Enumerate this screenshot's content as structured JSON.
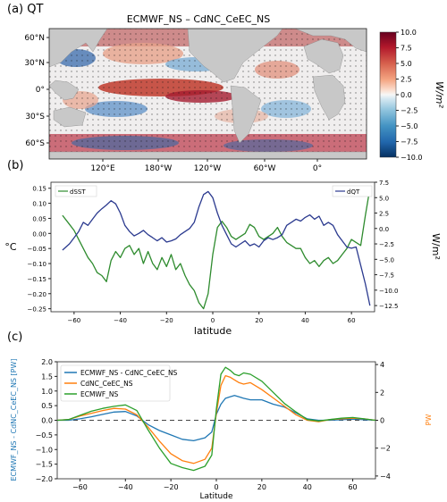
{
  "panels": {
    "a": {
      "label": "(a) QT"
    },
    "b": {
      "label": "(b)"
    },
    "c": {
      "label": "(c)"
    }
  },
  "chart_data": [
    {
      "type": "heatmap",
      "panel": "a",
      "title": "ECMWF_NS – CdNC_CeEC_NS",
      "x_ticks": [
        "120°E",
        "180°W",
        "120°W",
        "60°W",
        "0°"
      ],
      "y_ticks": [
        "60°N",
        "30°N",
        "0°",
        "30°S",
        "60°S"
      ],
      "colorbar": {
        "ticks": [
          "10.0",
          "7.5",
          "5.0",
          "2.5",
          "0.0",
          "−2.5",
          "−5.0",
          "−7.5",
          "−10.0"
        ],
        "label": "W/m²",
        "range": [
          -10,
          10
        ],
        "colormap": "RdBu_r"
      },
      "land_color": "#c8c8c8",
      "stippling": true
    },
    {
      "type": "line",
      "panel": "b",
      "xlabel": "latitude",
      "ylabel_left": "°C",
      "ylabel_right": "W/m²",
      "xlim": [
        -70,
        70
      ],
      "ylim_left": [
        -0.26,
        0.17
      ],
      "ylim_right": [
        -13.5,
        7.5
      ],
      "x_ticks": [
        "−60",
        "−40",
        "−20",
        "0",
        "20",
        "40",
        "60"
      ],
      "y_ticks_left": [
        "0.15",
        "0.10",
        "0.05",
        "0.00",
        "−0.05",
        "−0.10",
        "−0.15",
        "−0.20",
        "−0.25"
      ],
      "y_ticks_right": [
        "7.5",
        "5.0",
        "2.5",
        "0.0",
        "−2.5",
        "−5.0",
        "−7.5",
        "−10.0",
        "−12.5"
      ],
      "legend": {
        "left": "dSST",
        "right": "dQT"
      },
      "series": [
        {
          "name": "dSST",
          "axis": "left",
          "color": "#2e8b2e",
          "x": [
            -65,
            -62,
            -60,
            -58,
            -56,
            -54,
            -52,
            -50,
            -48,
            -46,
            -44,
            -42,
            -40,
            -38,
            -36,
            -34,
            -32,
            -30,
            -28,
            -26,
            -24,
            -22,
            -20,
            -18,
            -16,
            -14,
            -12,
            -10,
            -8,
            -6,
            -4,
            -2,
            0,
            2,
            4,
            6,
            8,
            10,
            12,
            14,
            16,
            18,
            20,
            22,
            24,
            26,
            28,
            30,
            32,
            34,
            36,
            38,
            40,
            42,
            44,
            46,
            48,
            50,
            52,
            54,
            56,
            58,
            60,
            62,
            64,
            66,
            68
          ],
          "y": [
            0.06,
            0.03,
            0.01,
            -0.02,
            -0.05,
            -0.08,
            -0.1,
            -0.13,
            -0.14,
            -0.16,
            -0.09,
            -0.06,
            -0.08,
            -0.05,
            -0.04,
            -0.07,
            -0.05,
            -0.1,
            -0.06,
            -0.1,
            -0.12,
            -0.08,
            -0.11,
            -0.07,
            -0.12,
            -0.1,
            -0.14,
            -0.17,
            -0.19,
            -0.23,
            -0.25,
            -0.2,
            -0.07,
            0.02,
            0.04,
            0.02,
            -0.01,
            -0.02,
            -0.01,
            0.0,
            0.03,
            0.02,
            -0.01,
            -0.02,
            -0.01,
            0.0,
            0.02,
            -0.01,
            -0.03,
            -0.04,
            -0.05,
            -0.05,
            -0.08,
            -0.1,
            -0.09,
            -0.11,
            -0.09,
            -0.08,
            -0.1,
            -0.09,
            -0.07,
            -0.05,
            -0.02,
            -0.03,
            -0.04,
            0.06,
            0.15
          ]
        },
        {
          "name": "dQT",
          "axis": "right",
          "color": "#2b3a8f",
          "x": [
            -65,
            -62,
            -60,
            -58,
            -56,
            -54,
            -52,
            -50,
            -48,
            -46,
            -44,
            -42,
            -40,
            -38,
            -36,
            -34,
            -32,
            -30,
            -28,
            -26,
            -24,
            -22,
            -20,
            -18,
            -16,
            -14,
            -12,
            -10,
            -8,
            -6,
            -4,
            -2,
            0,
            2,
            4,
            6,
            8,
            10,
            12,
            14,
            16,
            18,
            20,
            22,
            24,
            26,
            28,
            30,
            32,
            34,
            36,
            38,
            40,
            42,
            44,
            46,
            48,
            50,
            52,
            54,
            56,
            58,
            60,
            62,
            64,
            66,
            68
          ],
          "y": [
            -3.5,
            -2.5,
            -1.5,
            -0.5,
            1.0,
            0.5,
            1.5,
            2.5,
            3.2,
            3.8,
            4.5,
            4.0,
            2.5,
            0.5,
            -0.5,
            -1.2,
            -0.8,
            -0.3,
            -1.0,
            -1.5,
            -2.0,
            -1.5,
            -2.2,
            -2.0,
            -1.7,
            -1.0,
            -0.5,
            0.0,
            1.0,
            3.5,
            5.5,
            6.0,
            5.0,
            2.5,
            0.5,
            -1.0,
            -2.5,
            -3.0,
            -2.5,
            -2.0,
            -2.8,
            -2.5,
            -3.0,
            -2.0,
            -1.5,
            -1.8,
            -1.5,
            -1.0,
            0.5,
            1.0,
            1.5,
            1.2,
            1.8,
            2.2,
            1.5,
            2.0,
            0.5,
            1.0,
            0.5,
            -1.0,
            -2.0,
            -3.0,
            -3.2,
            -3.0,
            -6.0,
            -9.0,
            -12.5
          ]
        }
      ]
    },
    {
      "type": "line",
      "panel": "c",
      "xlabel": "Latitude",
      "ylabel_left": "ECMWF_NS - CdNC_CeEC_NS [PW]",
      "ylabel_right": "PW",
      "xlim": [
        -70,
        70
      ],
      "ylim_left": [
        -2.0,
        2.0
      ],
      "ylim_right": [
        -4.2,
        4.2
      ],
      "x_ticks": [
        "−60",
        "−40",
        "−20",
        "0",
        "20",
        "40",
        "60"
      ],
      "y_ticks_left": [
        "2.0",
        "1.5",
        "1.0",
        "0.5",
        "0.0",
        "−0.5",
        "−1.0",
        "−1.5",
        "−2.0"
      ],
      "y_ticks_right": [
        "4",
        "2",
        "0",
        "−2",
        "−4"
      ],
      "legend_position": "upper-left",
      "reference_line": 0,
      "series": [
        {
          "name": "ECMWF_NS - CdNC_CeEC_NS",
          "axis": "left",
          "color": "#1f77b4",
          "x": [
            -70,
            -65,
            -60,
            -55,
            -50,
            -45,
            -40,
            -35,
            -30,
            -25,
            -20,
            -15,
            -10,
            -5,
            -2,
            0,
            2,
            4,
            6,
            8,
            10,
            12,
            15,
            20,
            25,
            30,
            35,
            40,
            45,
            50,
            55,
            60,
            65,
            70
          ],
          "y": [
            0.0,
            0.0,
            0.05,
            0.12,
            0.2,
            0.28,
            0.3,
            0.15,
            -0.15,
            -0.35,
            -0.5,
            -0.65,
            -0.7,
            -0.6,
            -0.4,
            0.2,
            0.55,
            0.75,
            0.8,
            0.85,
            0.8,
            0.75,
            0.7,
            0.7,
            0.55,
            0.45,
            0.25,
            0.05,
            0.0,
            0.0,
            0.02,
            0.04,
            0.02,
            0.0
          ]
        },
        {
          "name": "CdNC_CeEC_NS",
          "axis": "right",
          "color": "#ff7f0e",
          "x": [
            -70,
            -65,
            -60,
            -55,
            -50,
            -45,
            -40,
            -35,
            -30,
            -25,
            -20,
            -15,
            -10,
            -5,
            -2,
            0,
            2,
            4,
            6,
            8,
            10,
            12,
            15,
            20,
            25,
            30,
            35,
            40,
            45,
            50,
            55,
            60,
            65,
            70
          ],
          "y": [
            0.0,
            0.05,
            0.3,
            0.5,
            0.7,
            0.85,
            0.8,
            0.4,
            -0.5,
            -1.5,
            -2.4,
            -2.9,
            -3.1,
            -2.8,
            -2.0,
            0.5,
            2.5,
            3.2,
            3.1,
            2.9,
            2.7,
            2.6,
            2.7,
            2.2,
            1.6,
            1.0,
            0.4,
            0.0,
            -0.1,
            0.05,
            0.1,
            0.15,
            0.1,
            0.0
          ]
        },
        {
          "name": "ECMWF_NS",
          "axis": "right",
          "color": "#2ca02c",
          "x": [
            -70,
            -65,
            -60,
            -55,
            -50,
            -45,
            -40,
            -35,
            -30,
            -25,
            -20,
            -15,
            -10,
            -5,
            -2,
            0,
            2,
            4,
            6,
            8,
            10,
            12,
            15,
            20,
            25,
            30,
            35,
            40,
            45,
            50,
            55,
            60,
            65,
            70
          ],
          "y": [
            0.0,
            0.05,
            0.35,
            0.65,
            0.85,
            1.0,
            1.1,
            0.7,
            -0.7,
            -2.0,
            -3.1,
            -3.4,
            -3.6,
            -3.3,
            -2.5,
            0.8,
            3.3,
            3.8,
            3.6,
            3.3,
            3.2,
            3.4,
            3.3,
            2.8,
            2.0,
            1.2,
            0.6,
            0.05,
            -0.05,
            0.05,
            0.15,
            0.2,
            0.1,
            0.0
          ]
        }
      ]
    }
  ]
}
